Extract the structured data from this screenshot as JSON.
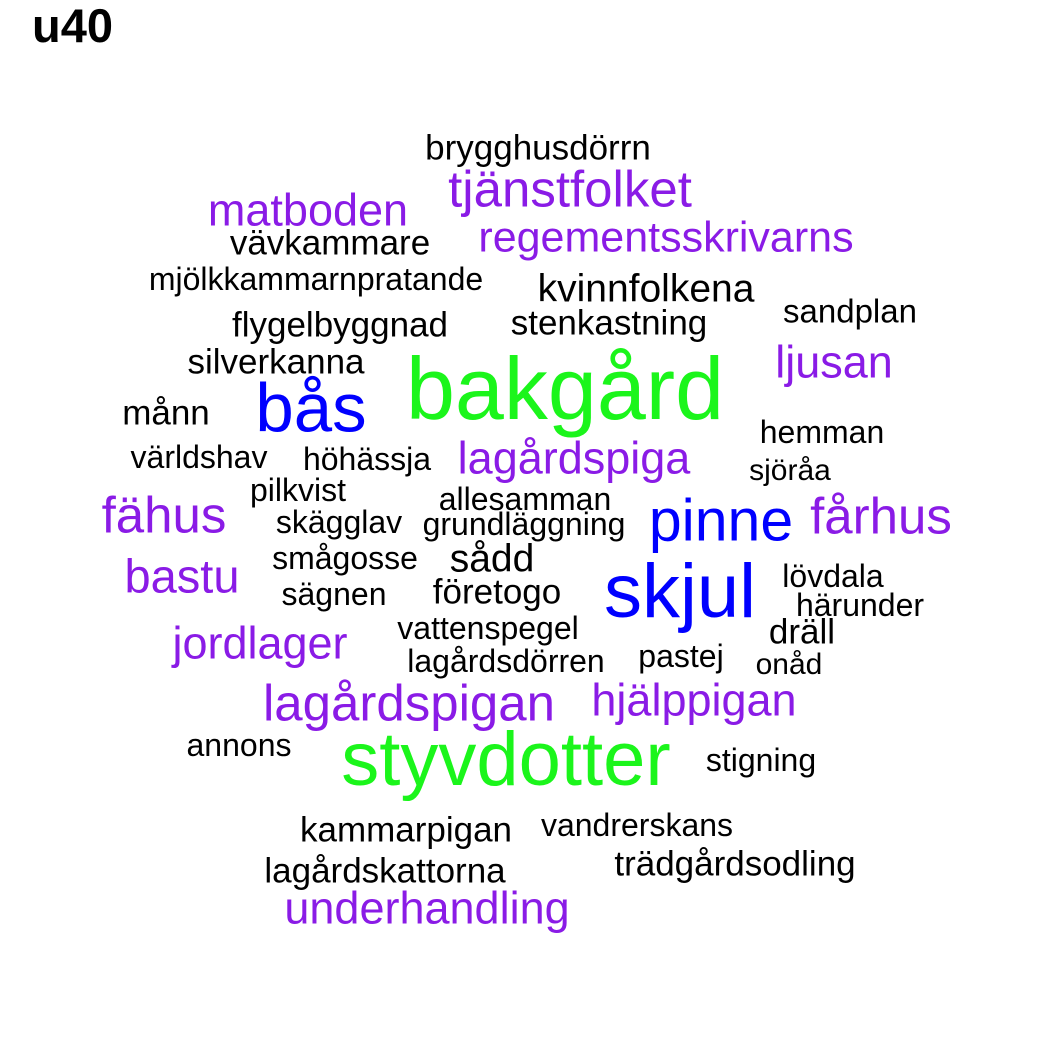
{
  "title": "u40",
  "colors": {
    "black": "#000000",
    "purple": "#8a1be6",
    "blue": "#0000ff",
    "green": "#1bf51b"
  },
  "words": [
    {
      "text": "brygghusdörrn",
      "color": "black"
    },
    {
      "text": "tjänstfolket",
      "color": "purple"
    },
    {
      "text": "matboden",
      "color": "purple"
    },
    {
      "text": "vävkammare",
      "color": "black"
    },
    {
      "text": "regementsskrivarns",
      "color": "purple"
    },
    {
      "text": "mjölkkammarnpratande",
      "color": "black"
    },
    {
      "text": "kvinnfolkena",
      "color": "black"
    },
    {
      "text": "sandplan",
      "color": "black"
    },
    {
      "text": "flygelbyggnad",
      "color": "black"
    },
    {
      "text": "stenkastning",
      "color": "black"
    },
    {
      "text": "silverkanna",
      "color": "black"
    },
    {
      "text": "bakgård",
      "color": "green"
    },
    {
      "text": "ljusan",
      "color": "purple"
    },
    {
      "text": "bås",
      "color": "blue"
    },
    {
      "text": "månn",
      "color": "black"
    },
    {
      "text": "hemman",
      "color": "black"
    },
    {
      "text": "världshav",
      "color": "black"
    },
    {
      "text": "höhässja",
      "color": "black"
    },
    {
      "text": "lagårdspiga",
      "color": "purple"
    },
    {
      "text": "sjöråa",
      "color": "black"
    },
    {
      "text": "pilkvist",
      "color": "black"
    },
    {
      "text": "allesamman",
      "color": "black"
    },
    {
      "text": "fähus",
      "color": "purple"
    },
    {
      "text": "skägglav",
      "color": "black"
    },
    {
      "text": "grundläggning",
      "color": "black"
    },
    {
      "text": "pinne",
      "color": "blue"
    },
    {
      "text": "fårhus",
      "color": "purple"
    },
    {
      "text": "smågosse",
      "color": "black"
    },
    {
      "text": "sådd",
      "color": "black"
    },
    {
      "text": "bastu",
      "color": "purple"
    },
    {
      "text": "skjul",
      "color": "blue"
    },
    {
      "text": "lövdala",
      "color": "black"
    },
    {
      "text": "sägnen",
      "color": "black"
    },
    {
      "text": "företogo",
      "color": "black"
    },
    {
      "text": "härunder",
      "color": "black"
    },
    {
      "text": "vattenspegel",
      "color": "black"
    },
    {
      "text": "dräll",
      "color": "black"
    },
    {
      "text": "jordlager",
      "color": "purple"
    },
    {
      "text": "pastej",
      "color": "black"
    },
    {
      "text": "lagårdsdörren",
      "color": "black"
    },
    {
      "text": "onåd",
      "color": "black"
    },
    {
      "text": "lagårdspigan",
      "color": "purple"
    },
    {
      "text": "hjälppigan",
      "color": "purple"
    },
    {
      "text": "annons",
      "color": "black"
    },
    {
      "text": "styvdotter",
      "color": "green"
    },
    {
      "text": "stigning",
      "color": "black"
    },
    {
      "text": "kammarpigan",
      "color": "black"
    },
    {
      "text": "vandrerskans",
      "color": "black"
    },
    {
      "text": "trädgårdsodling",
      "color": "black"
    },
    {
      "text": "lagårdskattorna",
      "color": "black"
    },
    {
      "text": "underhandling",
      "color": "purple"
    }
  ]
}
